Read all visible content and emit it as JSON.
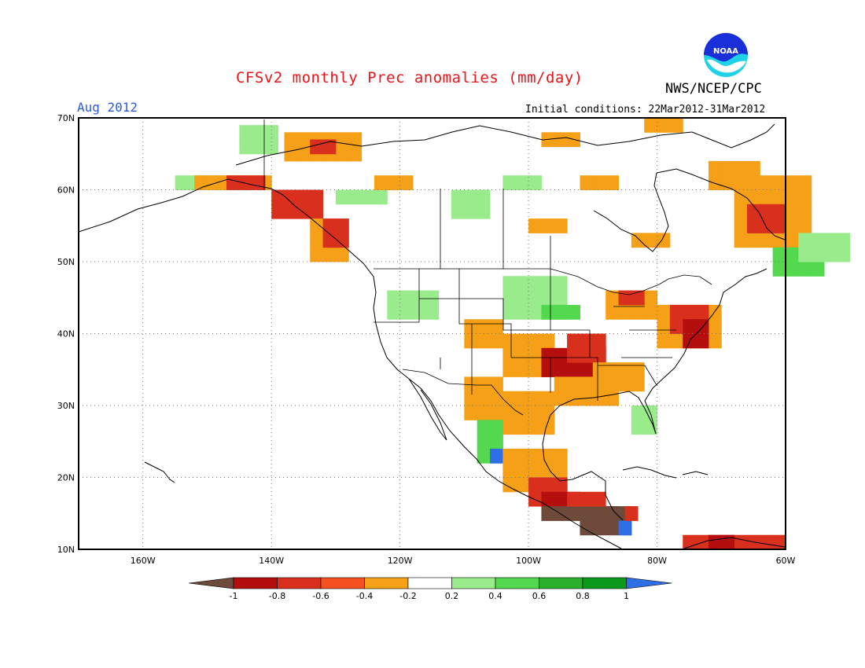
{
  "header": {
    "title": "CFSv2 monthly Prec anomalies (mm/day)",
    "agency": "NWS/NCEP/CPC",
    "month": "Aug 2012",
    "initial_conditions": "Initial conditions: 22Mar2012-31Mar2012",
    "logo_text": "NOAA"
  },
  "map": {
    "lat_labels": [
      "70N",
      "60N",
      "50N",
      "40N",
      "30N",
      "20N",
      "10N"
    ],
    "lon_labels": [
      "160W",
      "140W",
      "120W",
      "100W",
      "80W",
      "60W"
    ],
    "lat_range": [
      10,
      70
    ],
    "lon_range": [
      -170,
      -60
    ],
    "grid": "dotted"
  },
  "legend": {
    "labels": [
      "-1",
      "-0.8",
      "-0.6",
      "-0.4",
      "-0.2",
      "0.2",
      "0.4",
      "0.6",
      "0.8",
      "1"
    ],
    "colors": [
      "#6e4a3a",
      "#b50e0e",
      "#d9301d",
      "#f5501f",
      "#f5a016",
      "#ffffff",
      "#9aeb8c",
      "#53d84e",
      "#2ab02a",
      "#0c9a1d",
      "#2f6fe6"
    ]
  }
}
